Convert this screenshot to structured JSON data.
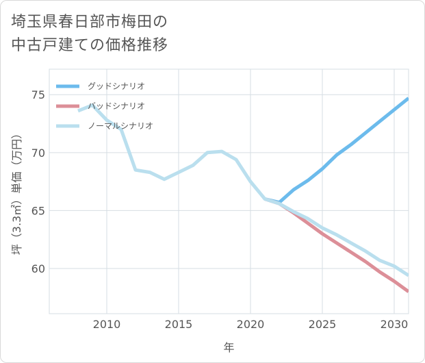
{
  "title_lines": [
    "埼玉県春日部市梅田の",
    "中古戸建ての価格推移"
  ],
  "chart_data": {
    "type": "line",
    "title": "埼玉県春日部市梅田の中古戸建ての価格推移",
    "xlabel": "年",
    "ylabel": "坪（3.3㎡）単価（万円）",
    "xlim": [
      2006,
      2031
    ],
    "ylim": [
      56.1,
      77.2
    ],
    "x_ticks": [
      2010,
      2015,
      2020,
      2025,
      2030
    ],
    "y_ticks": [
      60,
      65,
      70,
      75
    ],
    "grid": true,
    "legend_position": "top-left",
    "series": [
      {
        "name": "グッドシナリオ",
        "color": "#6cbbec",
        "x": [
          2021,
          2022,
          2023,
          2024,
          2025,
          2026,
          2027,
          2028,
          2029,
          2030,
          2031
        ],
        "values": [
          66.0,
          65.7,
          66.8,
          67.6,
          68.6,
          69.8,
          70.7,
          71.7,
          72.7,
          73.7,
          74.7
        ]
      },
      {
        "name": "バッドシナリオ",
        "color": "#dc8f98",
        "x": [
          2021,
          2022,
          2023,
          2024,
          2025,
          2026,
          2027,
          2028,
          2029,
          2030,
          2031
        ],
        "values": [
          66.0,
          65.6,
          64.8,
          63.9,
          63.0,
          62.2,
          61.4,
          60.6,
          59.7,
          58.9,
          58.0
        ]
      },
      {
        "name": "ノーマルシナリオ",
        "color": "#badfee",
        "x": [
          2008,
          2009,
          2010,
          2011,
          2012,
          2013,
          2014,
          2015,
          2016,
          2017,
          2018,
          2019,
          2020,
          2021,
          2022,
          2023,
          2024,
          2025,
          2026,
          2027,
          2028,
          2029,
          2030,
          2031
        ],
        "values": [
          73.6,
          74.1,
          72.8,
          72.0,
          68.5,
          68.3,
          67.7,
          68.3,
          68.9,
          70.0,
          70.1,
          69.4,
          67.5,
          66.0,
          65.6,
          64.9,
          64.3,
          63.5,
          62.9,
          62.2,
          61.5,
          60.7,
          60.2,
          59.4
        ]
      }
    ]
  }
}
